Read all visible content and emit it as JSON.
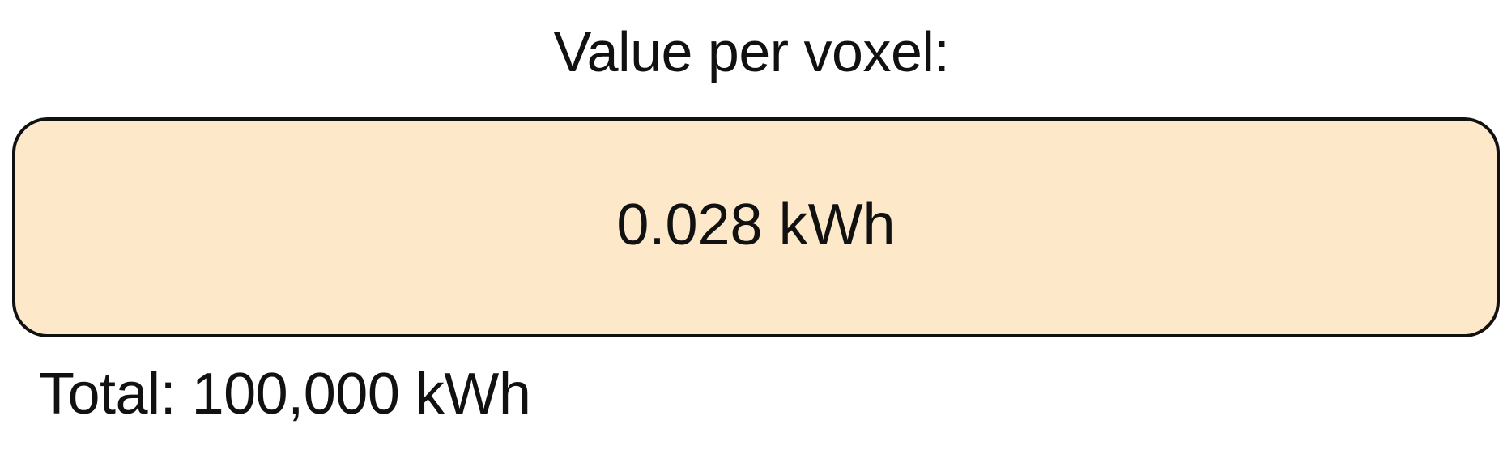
{
  "heading": "Value per voxel:",
  "value_box": {
    "value": "0.028 kWh",
    "background_color": "#fde8c9"
  },
  "total": "Total: 100,000 kWh"
}
